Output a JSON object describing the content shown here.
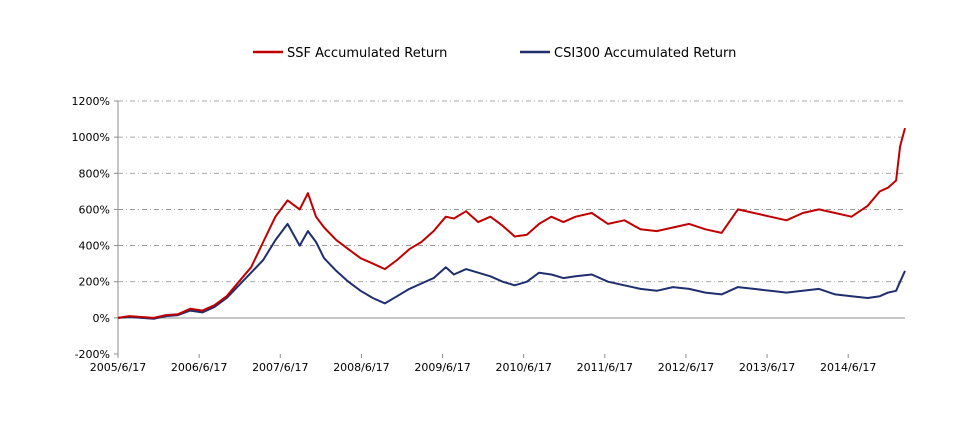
{
  "chart_data": {
    "type": "line",
    "xlabel": "",
    "ylabel": "",
    "ylim": [
      -200,
      1200
    ],
    "yticks": [
      -200,
      0,
      200,
      400,
      600,
      800,
      1000,
      1200
    ],
    "ytick_labels": [
      "-200%",
      "0%",
      "200%",
      "400%",
      "600%",
      "800%",
      "1000%",
      "1200%"
    ],
    "x_range": [
      2005.46,
      2015.16
    ],
    "xtick_labels": [
      "2005/6/17",
      "2006/6/17",
      "2007/6/17",
      "2008/6/17",
      "2009/6/17",
      "2010/6/17",
      "2011/6/17",
      "2012/6/17",
      "2013/6/17",
      "2014/6/17"
    ],
    "grid": true,
    "legend": "top-center",
    "series": [
      {
        "name": "SSF Accumulated Return",
        "color": "#c00000",
        "x": [
          2005.46,
          2005.6,
          2005.75,
          2005.9,
          2006.05,
          2006.2,
          2006.35,
          2006.5,
          2006.65,
          2006.8,
          2006.95,
          2007.1,
          2007.25,
          2007.4,
          2007.55,
          2007.7,
          2007.8,
          2007.9,
          2008.0,
          2008.15,
          2008.3,
          2008.45,
          2008.6,
          2008.75,
          2008.9,
          2009.05,
          2009.2,
          2009.35,
          2009.5,
          2009.6,
          2009.75,
          2009.9,
          2010.05,
          2010.2,
          2010.35,
          2010.5,
          2010.65,
          2010.8,
          2010.95,
          2011.1,
          2011.3,
          2011.5,
          2011.7,
          2011.9,
          2012.1,
          2012.3,
          2012.5,
          2012.7,
          2012.9,
          2013.1,
          2013.3,
          2013.5,
          2013.7,
          2013.9,
          2014.1,
          2014.3,
          2014.5,
          2014.7,
          2014.85,
          2014.95,
          2015.05,
          2015.1,
          2015.16
        ],
        "y": [
          0,
          10,
          5,
          0,
          15,
          20,
          50,
          40,
          70,
          120,
          200,
          280,
          420,
          560,
          650,
          600,
          690,
          560,
          500,
          430,
          380,
          330,
          300,
          270,
          320,
          380,
          420,
          480,
          560,
          550,
          590,
          530,
          560,
          510,
          450,
          460,
          520,
          560,
          530,
          560,
          580,
          520,
          540,
          490,
          480,
          500,
          520,
          490,
          470,
          600,
          580,
          560,
          540,
          580,
          600,
          580,
          560,
          620,
          700,
          720,
          760,
          950,
          1050
        ]
      },
      {
        "name": "CSI300 Accumulated Return",
        "color": "#1f2f6e",
        "x": [
          2005.46,
          2005.6,
          2005.75,
          2005.9,
          2006.05,
          2006.2,
          2006.35,
          2006.5,
          2006.65,
          2006.8,
          2006.95,
          2007.1,
          2007.25,
          2007.4,
          2007.55,
          2007.7,
          2007.8,
          2007.9,
          2008.0,
          2008.15,
          2008.3,
          2008.45,
          2008.6,
          2008.75,
          2008.9,
          2009.05,
          2009.2,
          2009.35,
          2009.5,
          2009.6,
          2009.75,
          2009.9,
          2010.05,
          2010.2,
          2010.35,
          2010.5,
          2010.65,
          2010.8,
          2010.95,
          2011.1,
          2011.3,
          2011.5,
          2011.7,
          2011.9,
          2012.1,
          2012.3,
          2012.5,
          2012.7,
          2012.9,
          2013.1,
          2013.3,
          2013.5,
          2013.7,
          2013.9,
          2014.1,
          2014.3,
          2014.5,
          2014.7,
          2014.85,
          2014.95,
          2015.05,
          2015.1,
          2015.16
        ],
        "y": [
          0,
          5,
          0,
          -5,
          10,
          15,
          40,
          30,
          60,
          110,
          180,
          250,
          320,
          430,
          520,
          400,
          480,
          420,
          330,
          260,
          200,
          150,
          110,
          80,
          120,
          160,
          190,
          220,
          280,
          240,
          270,
          250,
          230,
          200,
          180,
          200,
          250,
          240,
          220,
          230,
          240,
          200,
          180,
          160,
          150,
          170,
          160,
          140,
          130,
          170,
          160,
          150,
          140,
          150,
          160,
          130,
          120,
          110,
          120,
          140,
          150,
          200,
          260
        ]
      }
    ]
  }
}
